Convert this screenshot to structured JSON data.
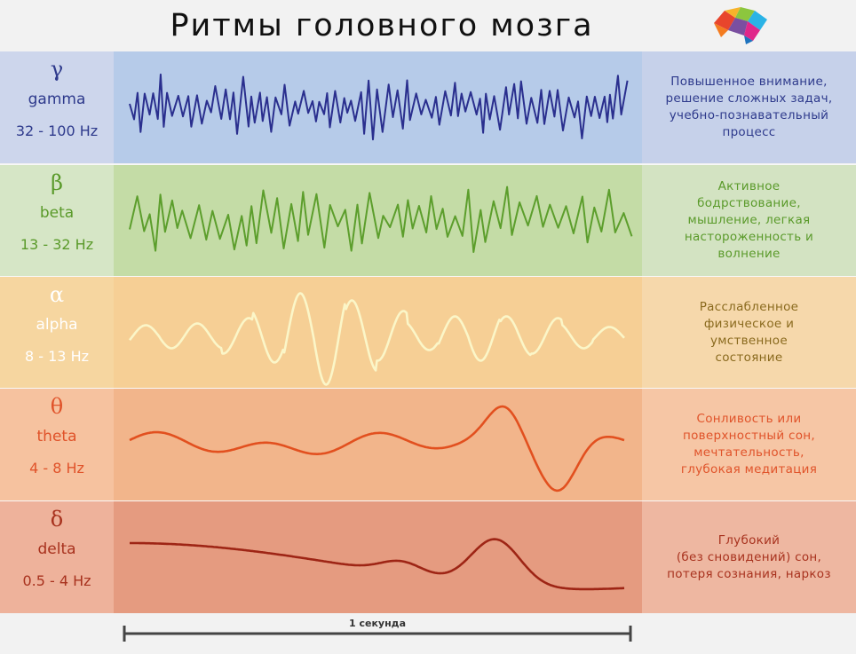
{
  "title": "Ритмы головного мозга",
  "scale_label": "1 секунда",
  "rows": [
    {
      "symbol": "γ",
      "name": "gamma",
      "hz": "32 - 100 Hz",
      "description": "Повышенное внимание,\nрешение сложных задач,\nучебно-познавательный\nпроцесс",
      "label_color": "#2e3a8c",
      "wave_color": "#2a2f8e",
      "bg_left": "#cdd6ec",
      "bg_mid": "#b6cbe9",
      "bg_right": "#c6d1ea"
    },
    {
      "symbol": "β",
      "name": "beta",
      "hz": "13 - 32 Hz",
      "description": "Активное\nбодрствование,\nмышление, легкая\nнастороженность и\nволнение",
      "label_color": "#5a9a2a",
      "wave_color": "#5c9e2c",
      "bg_left": "#d6e6c6",
      "bg_mid": "#c4dca6",
      "bg_right": "#d3e3c2"
    },
    {
      "symbol": "α",
      "name": "alpha",
      "hz": "8 - 13 Hz",
      "description": "Расслабленное\nфизическое и\nумственное\nсостояние",
      "label_color": "#ffffff",
      "wave_color": "#fbf6c8",
      "bg_left": "#f6d6a0",
      "bg_mid": "#f6cf95",
      "bg_right": "#f6d8ab"
    },
    {
      "symbol": "θ",
      "name": "theta",
      "hz": "4 - 8 Hz",
      "description": "Сонливость или\nповерхностный сон,\nмечтательность,\nглубокая медитация",
      "label_color": "#e0532a",
      "wave_color": "#e2501f",
      "bg_left": "#f6c29f",
      "bg_mid": "#f2b58b",
      "bg_right": "#f6c6a5"
    },
    {
      "symbol": "δ",
      "name": "delta",
      "hz": "0.5 - 4 Hz",
      "description": "Глубокий\n(без сновидений) сон,\nпотеря сознания, наркоз",
      "label_color": "#a8321e",
      "wave_color": "#9e2515",
      "bg_left": "#eeb29b",
      "bg_mid": "#e59b80",
      "bg_right": "#eeb7a1"
    }
  ]
}
